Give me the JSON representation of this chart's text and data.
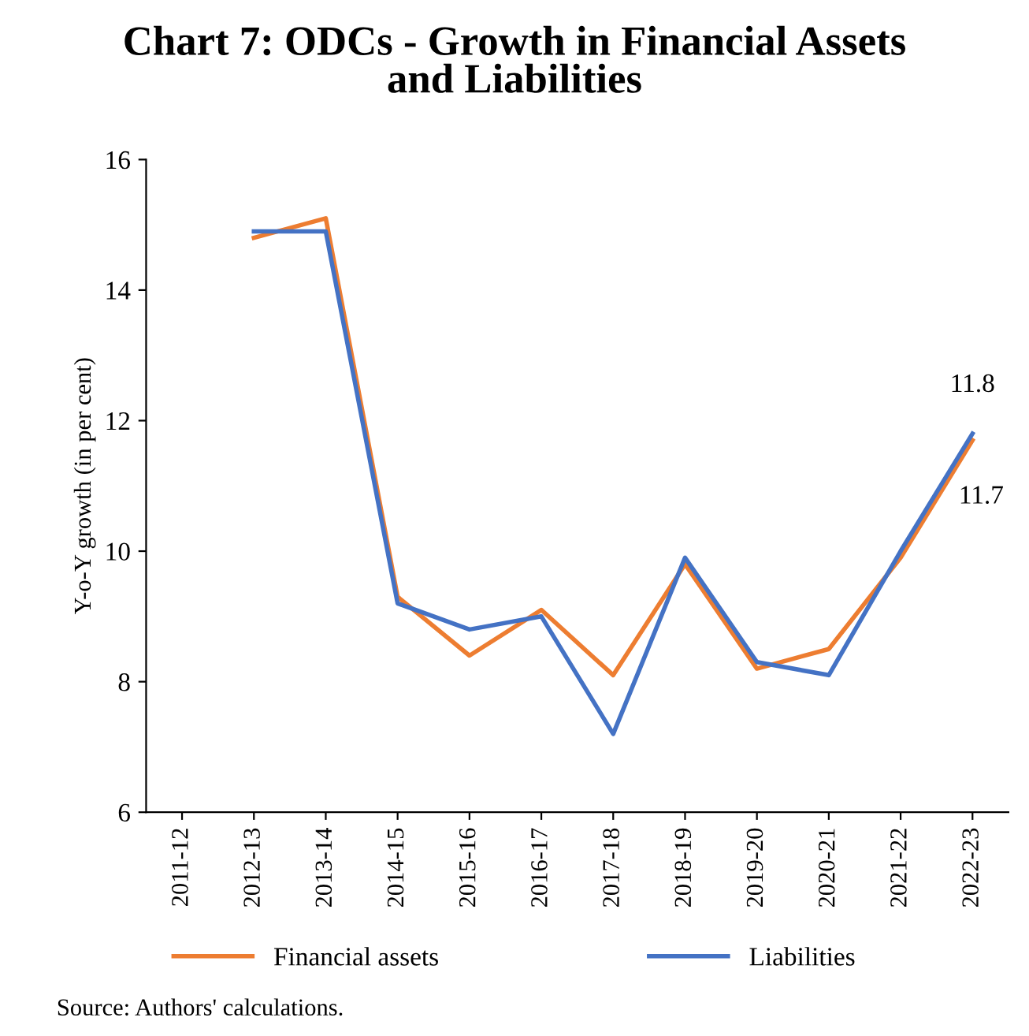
{
  "chart_data": {
    "type": "line",
    "title": "Chart 7: ODCs - Growth in Financial Assets\nand Liabilities",
    "ylabel": "Y-o-Y growth (in per cent)",
    "categories": [
      "2011-12",
      "2012-13",
      "2013-14",
      "2014-15",
      "2015-16",
      "2016-17",
      "2017-18",
      "2018-19",
      "2019-20",
      "2020-21",
      "2021-22",
      "2022-23"
    ],
    "series": [
      {
        "name": "Financial assets",
        "color": "#ed7d31",
        "values": [
          null,
          14.8,
          15.1,
          9.3,
          8.4,
          9.1,
          8.1,
          9.8,
          8.2,
          8.5,
          9.9,
          11.7
        ],
        "value_labels": [
          null,
          null,
          null,
          null,
          null,
          null,
          null,
          null,
          null,
          null,
          null,
          "11.7"
        ]
      },
      {
        "name": "Liabilities",
        "color": "#4472c4",
        "values": [
          null,
          14.9,
          14.9,
          9.2,
          8.8,
          9.0,
          7.2,
          9.9,
          8.3,
          8.1,
          10.0,
          11.8
        ],
        "value_labels": [
          null,
          null,
          null,
          null,
          null,
          null,
          null,
          null,
          null,
          null,
          null,
          "11.8"
        ]
      }
    ],
    "ylim": [
      6,
      16
    ],
    "yticks": [
      6,
      8,
      10,
      12,
      14,
      16
    ],
    "grid": false,
    "legend": "bottom",
    "marker": "none",
    "line_style": "solid",
    "annotations": [
      "Source: Authors' calculations."
    ]
  }
}
